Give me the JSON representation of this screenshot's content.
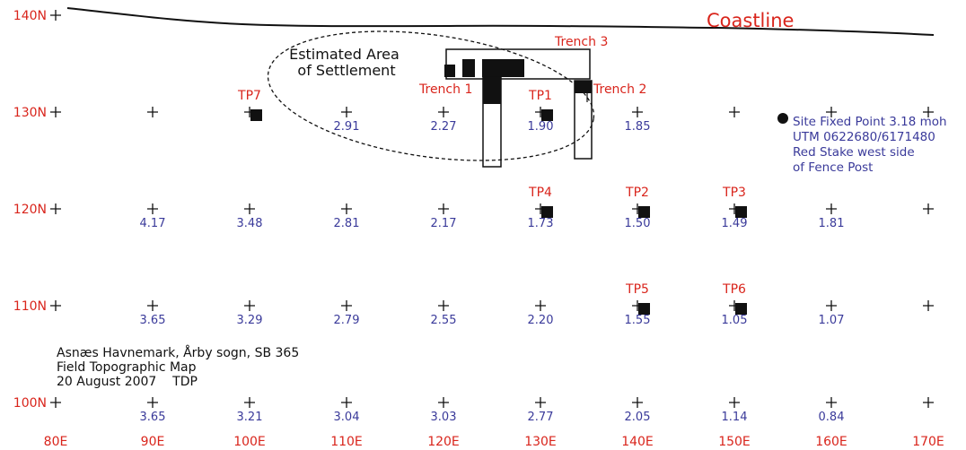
{
  "colors": {
    "label_red": "#d9251c",
    "value_blue": "#3a3a9a",
    "ink": "#111111"
  },
  "coastline_label": "Coastline",
  "settlement_label": [
    "Estimated Area",
    "of Settlement"
  ],
  "northings": [
    {
      "n": 140,
      "label": "140N"
    },
    {
      "n": 130,
      "label": "130N"
    },
    {
      "n": 120,
      "label": "120N"
    },
    {
      "n": 110,
      "label": "110N"
    },
    {
      "n": 100,
      "label": "100N"
    }
  ],
  "eastings": [
    {
      "e": 80,
      "label": "80E"
    },
    {
      "e": 90,
      "label": "90E"
    },
    {
      "e": 100,
      "label": "100E"
    },
    {
      "e": 110,
      "label": "110E"
    },
    {
      "e": 120,
      "label": "120E"
    },
    {
      "e": 130,
      "label": "130E"
    },
    {
      "e": 140,
      "label": "140E"
    },
    {
      "e": 150,
      "label": "150E"
    },
    {
      "e": 160,
      "label": "160E"
    },
    {
      "e": 170,
      "label": "170E"
    }
  ],
  "elevations": [
    {
      "e": 110,
      "n": 130,
      "v": "2.91"
    },
    {
      "e": 120,
      "n": 130,
      "v": "2.27"
    },
    {
      "e": 130,
      "n": 130,
      "v": "1.90"
    },
    {
      "e": 140,
      "n": 130,
      "v": "1.85"
    },
    {
      "e": 90,
      "n": 120,
      "v": "4.17"
    },
    {
      "e": 100,
      "n": 120,
      "v": "3.48"
    },
    {
      "e": 110,
      "n": 120,
      "v": "2.81"
    },
    {
      "e": 120,
      "n": 120,
      "v": "2.17"
    },
    {
      "e": 130,
      "n": 120,
      "v": "1.73"
    },
    {
      "e": 140,
      "n": 120,
      "v": "1.50"
    },
    {
      "e": 150,
      "n": 120,
      "v": "1.49"
    },
    {
      "e": 160,
      "n": 120,
      "v": "1.81"
    },
    {
      "e": 90,
      "n": 110,
      "v": "3.65"
    },
    {
      "e": 100,
      "n": 110,
      "v": "3.29"
    },
    {
      "e": 110,
      "n": 110,
      "v": "2.79"
    },
    {
      "e": 120,
      "n": 110,
      "v": "2.55"
    },
    {
      "e": 130,
      "n": 110,
      "v": "2.20"
    },
    {
      "e": 140,
      "n": 110,
      "v": "1.55"
    },
    {
      "e": 150,
      "n": 110,
      "v": "1.05"
    },
    {
      "e": 160,
      "n": 110,
      "v": "1.07"
    },
    {
      "e": 90,
      "n": 100,
      "v": "3.65"
    },
    {
      "e": 100,
      "n": 100,
      "v": "3.21"
    },
    {
      "e": 110,
      "n": 100,
      "v": "3.04"
    },
    {
      "e": 120,
      "n": 100,
      "v": "3.03"
    },
    {
      "e": 130,
      "n": 100,
      "v": "2.77"
    },
    {
      "e": 140,
      "n": 100,
      "v": "2.05"
    },
    {
      "e": 150,
      "n": 100,
      "v": "1.14"
    },
    {
      "e": 160,
      "n": 100,
      "v": "0.84"
    }
  ],
  "test_pits": [
    {
      "label": "TP7",
      "e": 100,
      "n": 130
    },
    {
      "label": "TP1",
      "e": 130,
      "n": 130
    },
    {
      "label": "TP4",
      "e": 130,
      "n": 120
    },
    {
      "label": "TP2",
      "e": 140,
      "n": 120
    },
    {
      "label": "TP3",
      "e": 150,
      "n": 120
    },
    {
      "label": "TP5",
      "e": 140,
      "n": 110
    },
    {
      "label": "TP6",
      "e": 150,
      "n": 110
    }
  ],
  "trenches": [
    "Trench 1",
    "Trench 2",
    "Trench 3"
  ],
  "fixed_point": [
    "Site Fixed Point 3.18 moh",
    "UTM 0622680/6171480",
    "Red Stake west side",
    "of Fence Post"
  ],
  "caption": [
    "Asnæs Havnemark, Årby sogn, SB 365",
    "Field Topographic Map",
    "20 August 2007    TDP"
  ]
}
